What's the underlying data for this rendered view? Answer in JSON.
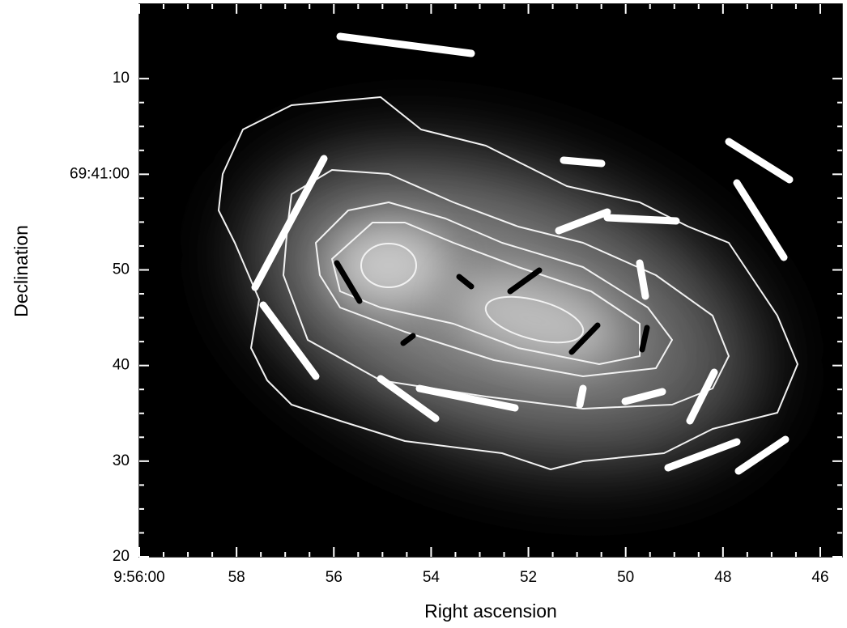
{
  "chart_data": {
    "type": "image",
    "xlabel": "Right ascension",
    "ylabel": "Declination",
    "xlim": [
      60,
      45.55
    ],
    "xticks": [
      {
        "value": 60,
        "label": "9:56:00"
      },
      58,
      56,
      54,
      52,
      50,
      48,
      46
    ],
    "ylim": [
      20,
      77.8
    ],
    "yticks": [
      20,
      30,
      40,
      50,
      {
        "value": 60,
        "label": "69:41:00"
      },
      {
        "value": 70,
        "label": "10"
      }
    ]
  }
}
